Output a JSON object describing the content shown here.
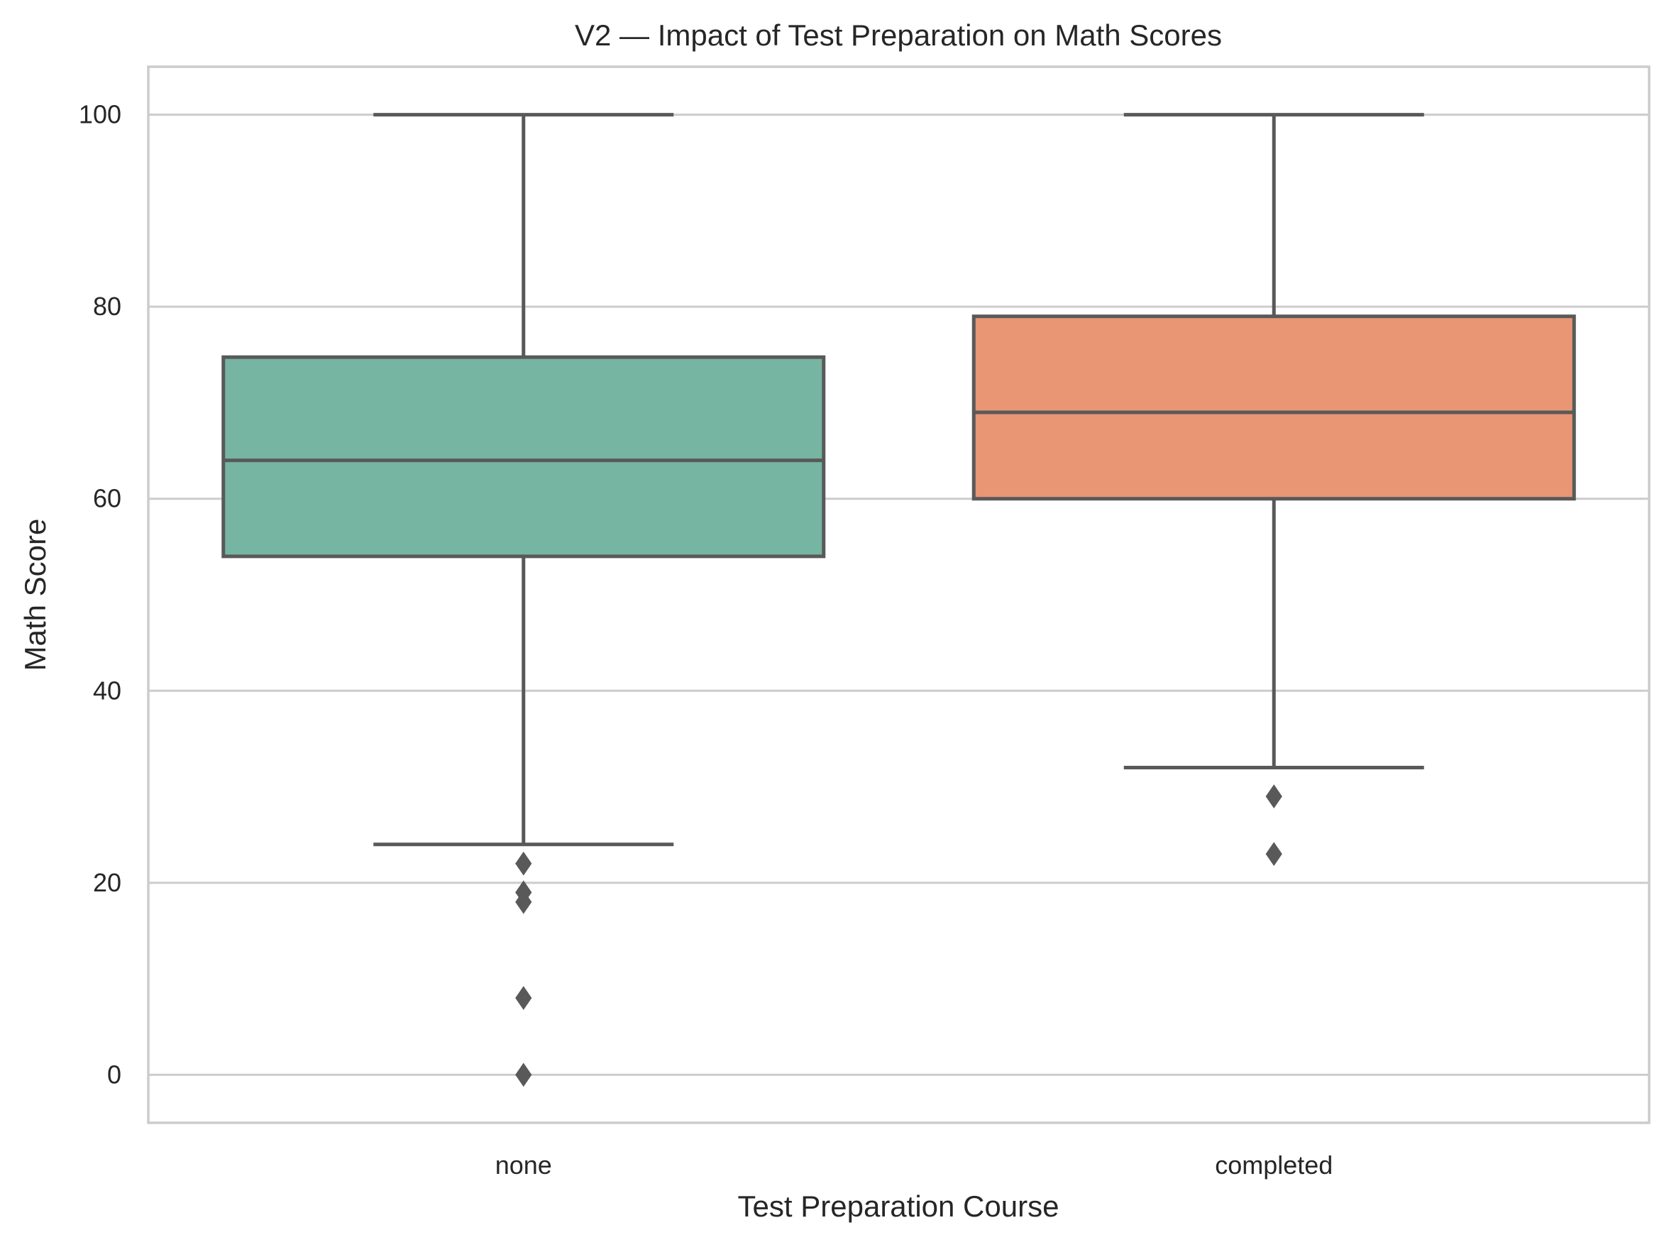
{
  "chart_data": {
    "type": "box",
    "title": "V2 — Impact of Test Preparation on Math Scores",
    "xlabel": "Test Preparation Course",
    "ylabel": "Math Score",
    "categories": [
      "none",
      "completed"
    ],
    "ylim": [
      -5,
      105
    ],
    "yticks": [
      0,
      20,
      40,
      60,
      80,
      100
    ],
    "grid": true,
    "series": [
      {
        "category": "none",
        "color": "#76b5a1",
        "whisker_low": 24,
        "q1": 54,
        "median": 64,
        "q3": 74.75,
        "whisker_high": 100,
        "outliers": [
          22,
          19,
          18,
          8,
          0
        ]
      },
      {
        "category": "completed",
        "color": "#e89674",
        "whisker_low": 32,
        "q1": 60,
        "median": 69,
        "q3": 79,
        "whisker_high": 100,
        "outliers": [
          29,
          23
        ]
      }
    ]
  }
}
